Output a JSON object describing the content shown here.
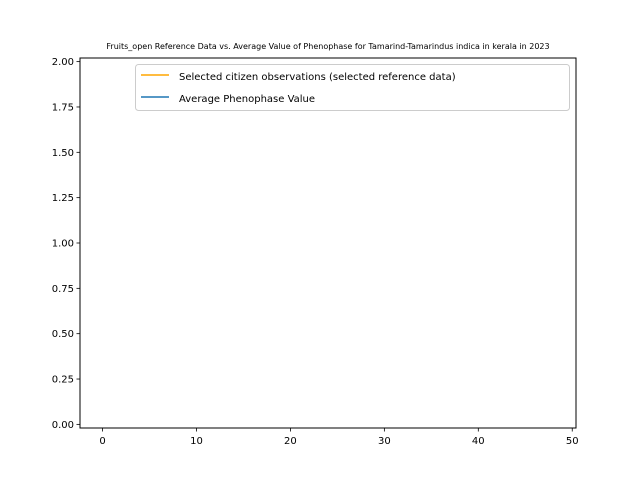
{
  "chart_data": {
    "type": "line",
    "title": "Fruits_open Reference Data vs. Average Value of Phenophase for Tamarind-Tamarindus indica in kerala in 2023",
    "xlabel": "",
    "ylabel": "",
    "xlim": [
      -2.4,
      50.4
    ],
    "ylim": [
      -0.02,
      2.02
    ],
    "x_ticks": [
      0,
      10,
      20,
      30,
      40,
      50
    ],
    "y_ticks": [
      0.0,
      0.25,
      0.5,
      0.75,
      1.0,
      1.25,
      1.5,
      1.75,
      2.0
    ],
    "x_tick_labels": [
      "0",
      "10",
      "20",
      "30",
      "40",
      "50"
    ],
    "y_tick_labels": [
      "0.00",
      "0.25",
      "0.50",
      "0.75",
      "1.00",
      "1.25",
      "1.50",
      "1.75",
      "2.00"
    ],
    "grid": false,
    "legend_position": "top-right",
    "series": [
      {
        "name": "Selected citizen observations (selected reference data)",
        "color": "#ffa500",
        "x": [],
        "y": []
      },
      {
        "name": "Average Phenophase Value",
        "color": "#1f77b4",
        "x": [],
        "y": []
      }
    ]
  }
}
